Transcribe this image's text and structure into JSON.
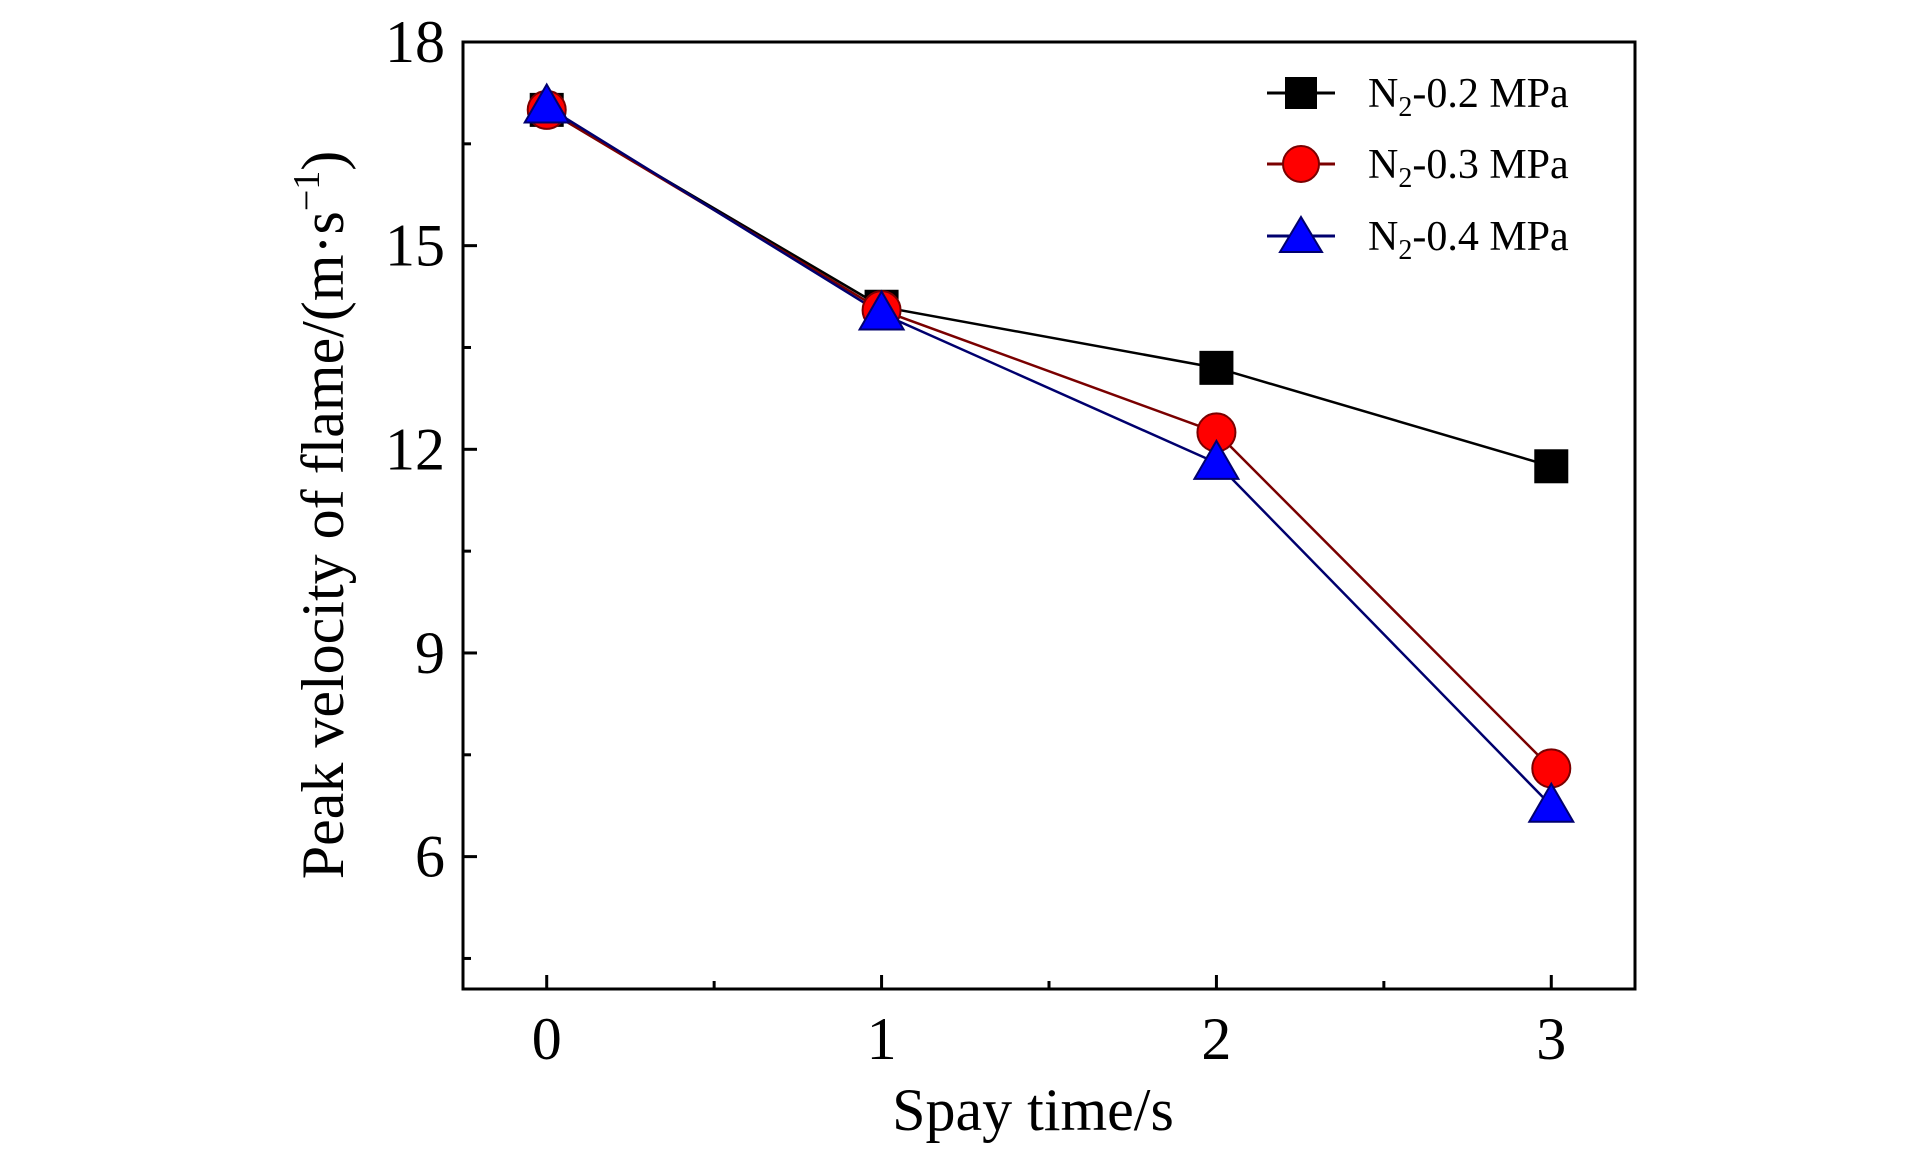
{
  "chart_data": {
    "type": "line",
    "title": "",
    "xlabel": "Spay time/s",
    "ylabel": "Peak velocity of flame/(m·s⁻¹)",
    "ylabel_parts": {
      "main": "Peak velocity of flame/(m·s",
      "sup": "−1",
      "close": ")"
    },
    "x": [
      0,
      1,
      2,
      3
    ],
    "x_ticks": [
      0,
      1,
      2,
      3
    ],
    "x_tick_labels": [
      "0",
      "1",
      "2",
      "3"
    ],
    "y_ticks": [
      6,
      9,
      12,
      15,
      18
    ],
    "y_tick_labels": [
      "6",
      "9",
      "12",
      "15",
      "18"
    ],
    "xlim": [
      -0.25,
      3.25
    ],
    "ylim": [
      4.05,
      18.0
    ],
    "grid": false,
    "legend_position": "top-right",
    "series": [
      {
        "name": "N₂-0.2 MPa",
        "label_parts": {
          "pre": "N",
          "sub": "2",
          "post": "-0.2 MPa"
        },
        "marker": "square",
        "color": "#000000",
        "line_color": "#000000",
        "values": [
          17.0,
          14.1,
          13.2,
          11.75
        ]
      },
      {
        "name": "N₂-0.3 MPa",
        "label_parts": {
          "pre": "N",
          "sub": "2",
          "post": "-0.3 MPa"
        },
        "marker": "circle",
        "color": "#ff0000",
        "line_color": "#7a0000",
        "values": [
          17.0,
          14.05,
          12.25,
          7.3
        ]
      },
      {
        "name": "N₂-0.4 MPa",
        "label_parts": {
          "pre": "N",
          "sub": "2",
          "post": "-0.4 MPa"
        },
        "marker": "triangle",
        "color": "#0000ff",
        "line_color": "#00006e",
        "values": [
          17.05,
          14.0,
          11.8,
          6.75
        ]
      }
    ]
  }
}
